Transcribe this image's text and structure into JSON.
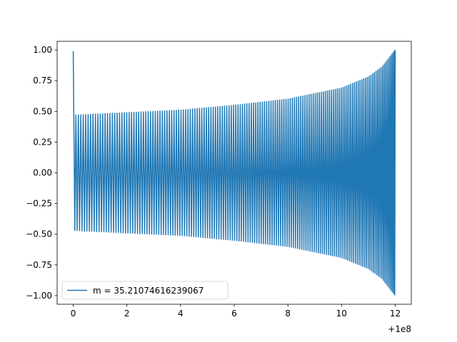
{
  "chart_data": {
    "type": "line",
    "title": "",
    "xlabel": "",
    "ylabel": "",
    "x_offset_label": "+1e8",
    "xlim": [
      -0.6,
      12.6
    ],
    "ylim": [
      -1.07,
      1.07
    ],
    "x_ticks": [
      0,
      2,
      4,
      6,
      8,
      10,
      12
    ],
    "x_tick_labels": [
      "0",
      "2",
      "4",
      "6",
      "8",
      "10",
      "12"
    ],
    "y_ticks": [
      1.0,
      0.75,
      0.5,
      0.25,
      0.0,
      -0.25,
      -0.5,
      -0.75,
      -1.0
    ],
    "y_tick_labels": [
      "1.00",
      "0.75",
      "0.50",
      "0.25",
      "0.00",
      "−0.25",
      "−0.50",
      "−0.75",
      "−1.00"
    ],
    "grid": false,
    "legend_position": "lower-left",
    "series": [
      {
        "name": "m = 35.21074616239067",
        "color": "#1f77b4",
        "description_points": {
          "x_start": 0,
          "x_end": 12,
          "initial_value": 0.99,
          "envelope": [
            {
              "x": 0.1,
              "amp": 0.47
            },
            {
              "x": 2,
              "amp": 0.49
            },
            {
              "x": 4,
              "amp": 0.51
            },
            {
              "x": 6,
              "amp": 0.55
            },
            {
              "x": 8,
              "amp": 0.6
            },
            {
              "x": 10,
              "amp": 0.69
            },
            {
              "x": 11,
              "amp": 0.78
            },
            {
              "x": 11.5,
              "amp": 0.86
            },
            {
              "x": 12,
              "amp": 1.0
            }
          ],
          "cycles": 150
        }
      }
    ]
  }
}
